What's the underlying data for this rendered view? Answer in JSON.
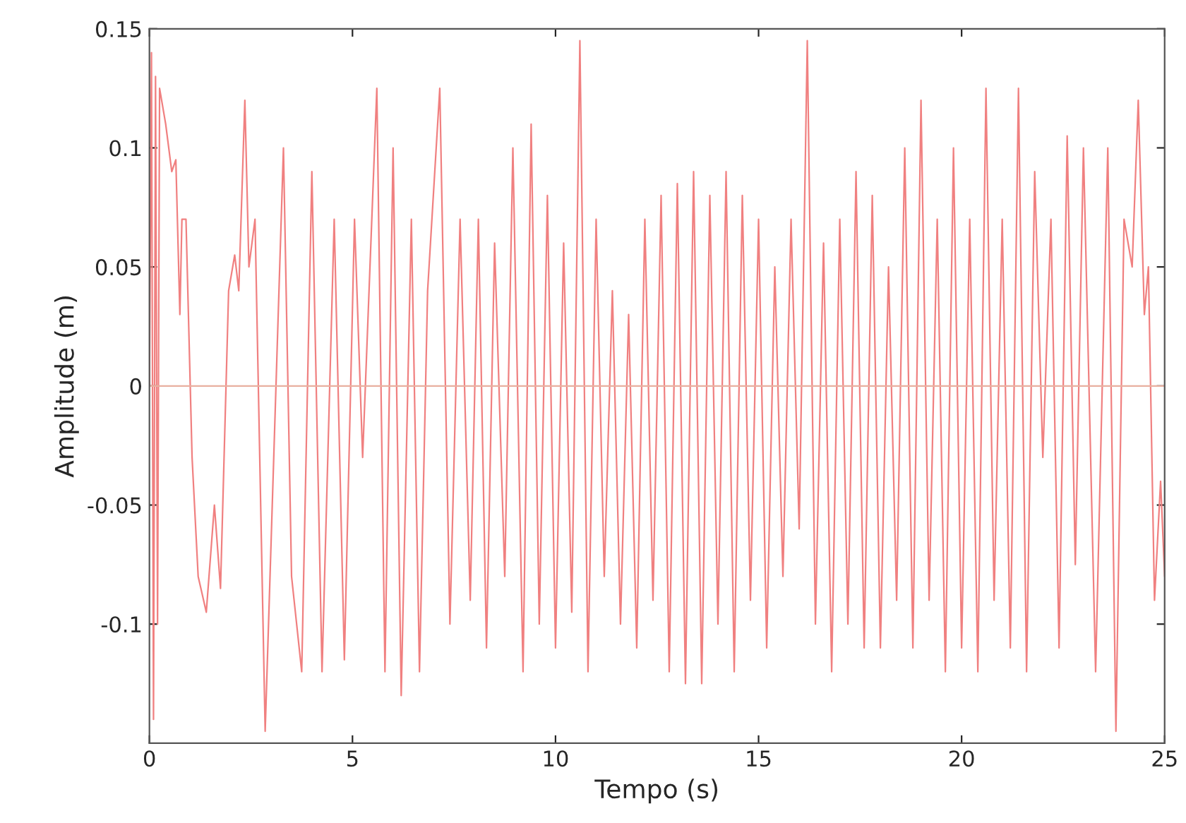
{
  "chart_data": {
    "type": "line",
    "xlabel": "Tempo (s)",
    "ylabel": "Amplitude (m)",
    "xlim": [
      0,
      25
    ],
    "ylim": [
      -0.15,
      0.15
    ],
    "xticks": [
      0,
      5,
      10,
      15,
      20,
      25
    ],
    "yticks": [
      {
        "value": -0.1,
        "label": "-0.1"
      },
      {
        "value": -0.05,
        "label": "-0.05"
      },
      0,
      0.05,
      0.1,
      0.15
    ],
    "grid": false,
    "ref_lines": [
      {
        "axis": "y",
        "value": 0,
        "color": "#e8b0a0"
      }
    ],
    "series": [
      {
        "color": "#f08080",
        "x": [
          0,
          0.05,
          0.1,
          0.15,
          0.2,
          0.25,
          0.4,
          0.55,
          0.65,
          0.75,
          0.8,
          0.9,
          1.05,
          1.2,
          1.4,
          1.6,
          1.75,
          1.95,
          2.1,
          2.2,
          2.35,
          2.45,
          2.6,
          2.85,
          3.3,
          3.5,
          3.75,
          4.0,
          4.25,
          4.55,
          4.8,
          5.05,
          5.25,
          5.6,
          5.8,
          6.0,
          6.2,
          6.45,
          6.65,
          6.85,
          7.15,
          7.4,
          7.65,
          7.9,
          8.1,
          8.3,
          8.5,
          8.75,
          8.95,
          9.2,
          9.4,
          9.6,
          9.8,
          10.0,
          10.2,
          10.4,
          10.6,
          10.8,
          11.0,
          11.2,
          11.4,
          11.6,
          11.8,
          12.0,
          12.2,
          12.4,
          12.6,
          12.8,
          13.0,
          13.2,
          13.4,
          13.6,
          13.8,
          14.0,
          14.2,
          14.4,
          14.6,
          14.8,
          15.0,
          15.2,
          15.4,
          15.6,
          15.8,
          16.0,
          16.2,
          16.4,
          16.6,
          16.8,
          17.0,
          17.2,
          17.4,
          17.6,
          17.8,
          18.0,
          18.2,
          18.4,
          18.6,
          18.8,
          19.0,
          19.2,
          19.4,
          19.6,
          19.8,
          20.0,
          20.2,
          20.4,
          20.6,
          20.8,
          21.0,
          21.2,
          21.4,
          21.6,
          21.8,
          22.0,
          22.2,
          22.4,
          22.6,
          22.8,
          23.0,
          23.3,
          23.6,
          23.8,
          24.0,
          24.2,
          24.35,
          24.5,
          24.6,
          24.75,
          24.9,
          25.0
        ],
        "values": [
          0,
          0.14,
          -0.14,
          0.13,
          -0.1,
          0.125,
          0.11,
          0.09,
          0.095,
          0.03,
          0.07,
          0.07,
          -0.03,
          -0.08,
          -0.095,
          -0.05,
          -0.085,
          0.04,
          0.055,
          0.04,
          0.12,
          0.05,
          0.07,
          -0.145,
          0.1,
          -0.08,
          -0.12,
          0.09,
          -0.12,
          0.07,
          -0.115,
          0.07,
          -0.03,
          0.125,
          -0.12,
          0.1,
          -0.13,
          0.07,
          -0.12,
          0.04,
          0.125,
          -0.1,
          0.07,
          -0.09,
          0.07,
          -0.11,
          0.06,
          -0.08,
          0.1,
          -0.12,
          0.11,
          -0.1,
          0.08,
          -0.11,
          0.06,
          -0.095,
          0.145,
          -0.12,
          0.07,
          -0.08,
          0.04,
          -0.1,
          0.03,
          -0.11,
          0.07,
          -0.09,
          0.08,
          -0.12,
          0.085,
          -0.125,
          0.09,
          -0.125,
          0.08,
          -0.1,
          0.09,
          -0.12,
          0.08,
          -0.09,
          0.07,
          -0.11,
          0.05,
          -0.08,
          0.07,
          -0.06,
          0.145,
          -0.1,
          0.06,
          -0.12,
          0.07,
          -0.1,
          0.09,
          -0.11,
          0.08,
          -0.11,
          0.05,
          -0.09,
          0.1,
          -0.11,
          0.12,
          -0.09,
          0.07,
          -0.12,
          0.1,
          -0.11,
          0.07,
          -0.12,
          0.125,
          -0.09,
          0.07,
          -0.11,
          0.125,
          -0.12,
          0.09,
          -0.03,
          0.07,
          -0.11,
          0.105,
          -0.075,
          0.1,
          -0.12,
          0.1,
          -0.145,
          0.07,
          0.05,
          0.12,
          0.03,
          0.05,
          -0.09,
          -0.04,
          -0.08
        ]
      }
    ]
  }
}
